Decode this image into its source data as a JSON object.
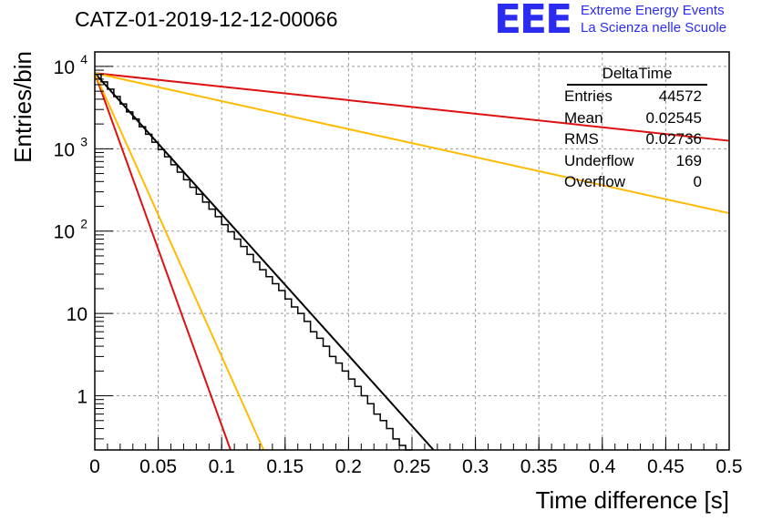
{
  "title": "CATZ-01-2019-12-12-00066",
  "logo": {
    "mark": "EEE",
    "line1": "Extreme Energy Events",
    "line2": "La Scienza nelle Scuole",
    "color": "#2c2cf0"
  },
  "stats": {
    "name": "DeltaTime",
    "rows": [
      {
        "label": "Entries",
        "value": "44572"
      },
      {
        "label": "Mean",
        "value": "0.02545"
      },
      {
        "label": "RMS",
        "value": "0.02736"
      },
      {
        "label": "Underflow",
        "value": "169"
      },
      {
        "label": "Overflow",
        "value": "0"
      }
    ]
  },
  "chart_data": {
    "type": "line",
    "title": "CATZ-01-2019-12-12-00066",
    "xlabel": "Time difference [s]",
    "ylabel": "Entries/bin",
    "xlim": [
      0,
      0.5
    ],
    "ylim": [
      0.22,
      15000
    ],
    "yscale": "log",
    "grid": true,
    "xticks": [
      "0",
      "0.05",
      "0.1",
      "0.15",
      "0.2",
      "0.25",
      "0.3",
      "0.35",
      "0.4",
      "0.45",
      "0.5"
    ],
    "yticks": [
      {
        "value": 1,
        "label": "1"
      },
      {
        "value": 10,
        "label": "10"
      },
      {
        "value": 100,
        "label": "10",
        "exp": "2"
      },
      {
        "value": 1000,
        "label": "10",
        "exp": "3"
      },
      {
        "value": 10000,
        "label": "10",
        "exp": "4"
      }
    ],
    "histogram": {
      "bin_width": 0.005,
      "values": [
        8000,
        6500,
        5300,
        4300,
        3500,
        2800,
        2300,
        1850,
        1500,
        1200,
        980,
        800,
        640,
        520,
        420,
        340,
        280,
        225,
        185,
        150,
        120,
        98,
        80,
        65,
        52,
        42,
        34,
        28,
        23,
        19,
        15,
        12,
        10,
        8,
        6,
        5,
        4,
        3,
        2.5,
        2,
        1.6,
        1.3,
        1,
        0.8,
        0.6,
        0.5,
        0.4,
        0.3,
        0.25,
        0.2
      ],
      "color": "#000000"
    },
    "series": [
      {
        "x": [
          0,
          0.267
        ],
        "y": [
          8300,
          0.22
        ],
        "color": "#000000"
      },
      {
        "x": [
          0,
          0.107
        ],
        "y": [
          8300,
          0.22
        ],
        "color": "#dd1111"
      },
      {
        "x": [
          0,
          0.133
        ],
        "y": [
          8300,
          0.22
        ],
        "color": "#ffbb00"
      },
      {
        "x": [
          0,
          0.5
        ],
        "y": [
          8300,
          1250
        ],
        "color": "#dd1111"
      },
      {
        "x": [
          0,
          0.5
        ],
        "y": [
          8300,
          165
        ],
        "color": "#ffbb00"
      }
    ]
  }
}
